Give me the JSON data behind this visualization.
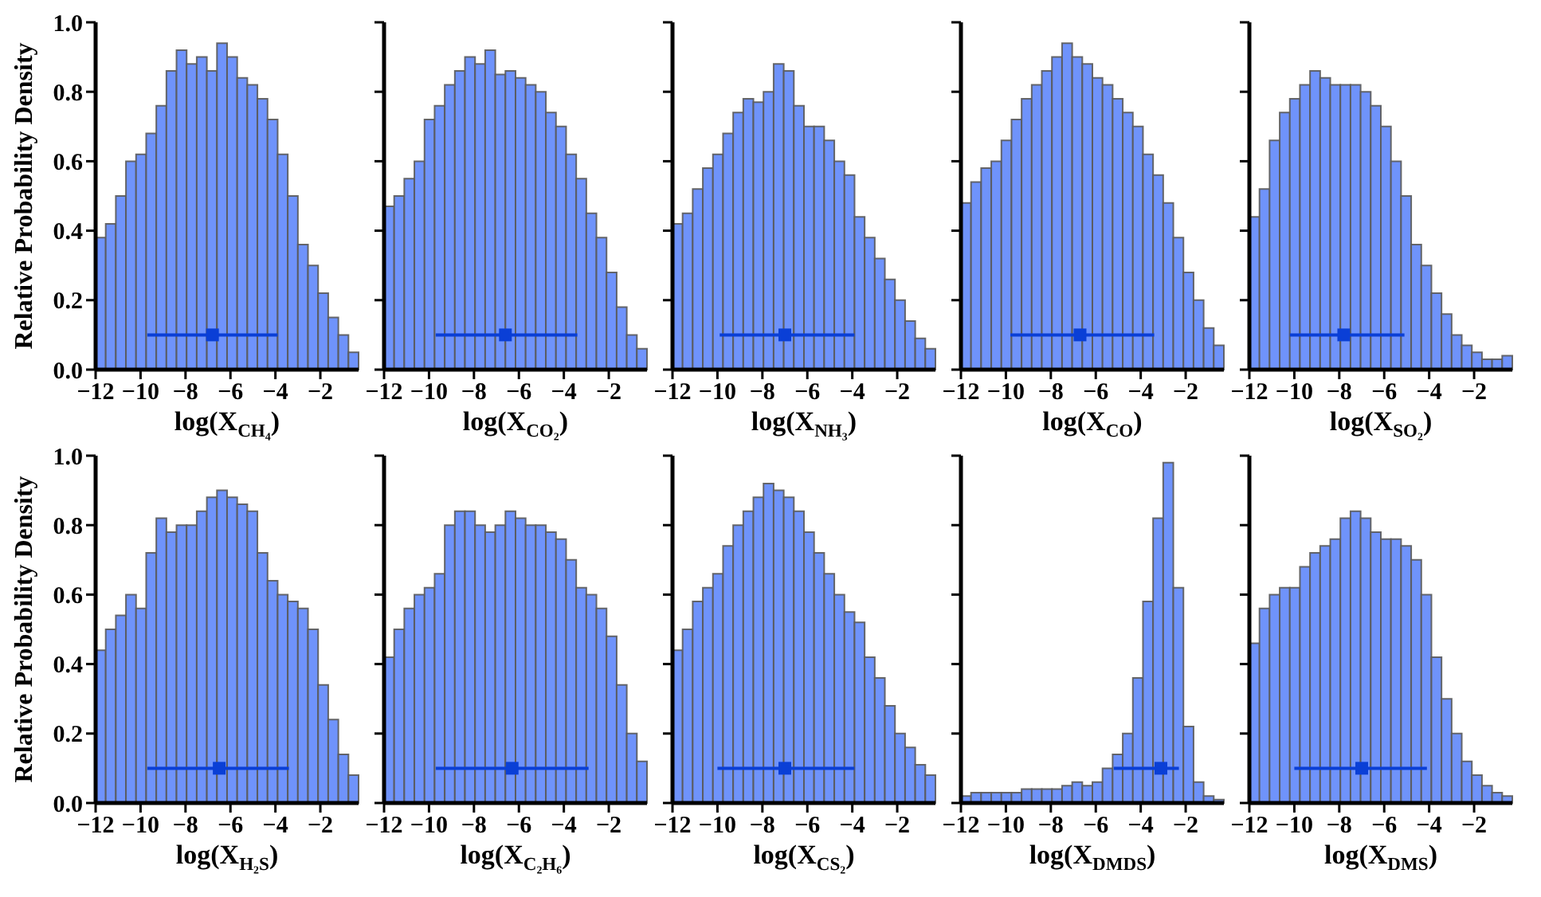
{
  "chart_data": [
    {
      "type": "histogram",
      "xlabel": "log(X$_{CH₄}$)",
      "ylabel": "Relative Probability Density",
      "bins": [
        -12,
        -11.55,
        -11.1,
        -10.65,
        -10.2,
        -9.75,
        -9.3,
        -8.85,
        -8.4,
        -7.95,
        -7.5,
        -7.05,
        -6.6,
        -6.15,
        -5.7,
        -5.25,
        -4.8,
        -4.35,
        -3.9,
        -3.45,
        -3,
        -2.55,
        -2.1,
        -1.65,
        -1.2,
        -0.75,
        -0.3
      ],
      "xlim": [
        -12,
        -0.3
      ],
      "xticks": [
        {
          "value": -12,
          "label": "−12"
        },
        {
          "value": -10,
          "label": "−10"
        },
        {
          "value": -8,
          "label": "−8"
        },
        {
          "value": -6,
          "label": "−6"
        },
        {
          "value": -4,
          "label": "−4"
        },
        {
          "value": -2,
          "label": "−2"
        }
      ],
      "ylim": [
        0,
        1
      ],
      "yticks": [
        {
          "value": 0,
          "label": "0.0"
        },
        {
          "value": 0.2,
          "label": "0.2"
        },
        {
          "value": 0.4,
          "label": "0.4"
        },
        {
          "value": 0.6,
          "label": "0.6"
        },
        {
          "value": 0.8,
          "label": "0.8"
        },
        {
          "value": 1,
          "label": "1.0"
        }
      ],
      "marker": "square",
      "series": [
        {
          "type": "histogram",
          "color": "#6f93fb",
          "values": [
            0.38,
            0.42,
            0.5,
            0.6,
            0.62,
            0.68,
            0.76,
            0.86,
            0.92,
            0.88,
            0.9,
            0.86,
            0.94,
            0.9,
            0.84,
            0.82,
            0.78,
            0.72,
            0.62,
            0.5,
            0.36,
            0.3,
            0.22,
            0.15,
            0.1,
            0.05
          ]
        },
        {
          "type": "scatter",
          "color": "#0a3fd6",
          "x": [
            -6.8
          ],
          "values": [
            0.1
          ],
          "xerrors": [
            [
              -9.7,
              -3.9
            ]
          ]
        }
      ]
    },
    {
      "type": "histogram",
      "xlabel": "log(X$_{CO₂}$)",
      "tick_labels": "x",
      "bins": [
        -12,
        -11.55,
        -11.1,
        -10.65,
        -10.2,
        -9.75,
        -9.3,
        -8.85,
        -8.4,
        -7.95,
        -7.5,
        -7.05,
        -6.6,
        -6.15,
        -5.7,
        -5.25,
        -4.8,
        -4.35,
        -3.9,
        -3.45,
        -3,
        -2.55,
        -2.1,
        -1.65,
        -1.2,
        -0.75,
        -0.3
      ],
      "xlim": [
        -12,
        -0.3
      ],
      "xticks": [
        {
          "value": -12,
          "label": "−12"
        },
        {
          "value": -10,
          "label": "−10"
        },
        {
          "value": -8,
          "label": "−8"
        },
        {
          "value": -6,
          "label": "−6"
        },
        {
          "value": -4,
          "label": "−4"
        },
        {
          "value": -2,
          "label": "−2"
        }
      ],
      "ylim": [
        0,
        1
      ],
      "yticks": [
        0,
        0.2,
        0.4,
        0.6,
        0.8,
        1
      ],
      "marker": "square",
      "series": [
        {
          "type": "histogram",
          "color": "#6f93fb",
          "values": [
            0.47,
            0.5,
            0.55,
            0.6,
            0.72,
            0.76,
            0.82,
            0.86,
            0.9,
            0.88,
            0.92,
            0.85,
            0.86,
            0.84,
            0.82,
            0.8,
            0.74,
            0.7,
            0.62,
            0.55,
            0.45,
            0.38,
            0.28,
            0.18,
            0.1,
            0.06
          ]
        },
        {
          "type": "scatter",
          "color": "#0a3fd6",
          "x": [
            -6.6
          ],
          "values": [
            0.1
          ],
          "xerrors": [
            [
              -9.7,
              -3.4
            ]
          ]
        }
      ]
    },
    {
      "type": "histogram",
      "xlabel": "log(X$_{NH₃}$)",
      "tick_labels": "x",
      "bins": [
        -12,
        -11.55,
        -11.1,
        -10.65,
        -10.2,
        -9.75,
        -9.3,
        -8.85,
        -8.4,
        -7.95,
        -7.5,
        -7.05,
        -6.6,
        -6.15,
        -5.7,
        -5.25,
        -4.8,
        -4.35,
        -3.9,
        -3.45,
        -3,
        -2.55,
        -2.1,
        -1.65,
        -1.2,
        -0.75,
        -0.3
      ],
      "xlim": [
        -12,
        -0.3
      ],
      "xticks": [
        {
          "value": -12,
          "label": "−12"
        },
        {
          "value": -10,
          "label": "−10"
        },
        {
          "value": -8,
          "label": "−8"
        },
        {
          "value": -6,
          "label": "−6"
        },
        {
          "value": -4,
          "label": "−4"
        },
        {
          "value": -2,
          "label": "−2"
        }
      ],
      "ylim": [
        0,
        1
      ],
      "yticks": [
        0,
        0.2,
        0.4,
        0.6,
        0.8,
        1
      ],
      "marker": "square",
      "series": [
        {
          "type": "histogram",
          "color": "#6f93fb",
          "values": [
            0.42,
            0.45,
            0.52,
            0.58,
            0.62,
            0.68,
            0.74,
            0.78,
            0.77,
            0.8,
            0.88,
            0.86,
            0.76,
            0.7,
            0.7,
            0.66,
            0.6,
            0.56,
            0.44,
            0.38,
            0.32,
            0.26,
            0.2,
            0.14,
            0.09,
            0.06
          ]
        },
        {
          "type": "scatter",
          "color": "#0a3fd6",
          "x": [
            -7.0
          ],
          "values": [
            0.1
          ],
          "xerrors": [
            [
              -9.9,
              -3.9
            ]
          ]
        }
      ]
    },
    {
      "type": "histogram",
      "xlabel": "log(X$_{CO}$)",
      "tick_labels": "x",
      "bins": [
        -12,
        -11.55,
        -11.1,
        -10.65,
        -10.2,
        -9.75,
        -9.3,
        -8.85,
        -8.4,
        -7.95,
        -7.5,
        -7.05,
        -6.6,
        -6.15,
        -5.7,
        -5.25,
        -4.8,
        -4.35,
        -3.9,
        -3.45,
        -3,
        -2.55,
        -2.1,
        -1.65,
        -1.2,
        -0.75,
        -0.3
      ],
      "xlim": [
        -12,
        -0.3
      ],
      "xticks": [
        {
          "value": -12,
          "label": "−12"
        },
        {
          "value": -10,
          "label": "−10"
        },
        {
          "value": -8,
          "label": "−8"
        },
        {
          "value": -6,
          "label": "−6"
        },
        {
          "value": -4,
          "label": "−4"
        },
        {
          "value": -2,
          "label": "−2"
        }
      ],
      "ylim": [
        0,
        1
      ],
      "yticks": [
        0,
        0.2,
        0.4,
        0.6,
        0.8,
        1
      ],
      "marker": "square",
      "series": [
        {
          "type": "histogram",
          "color": "#6f93fb",
          "values": [
            0.48,
            0.54,
            0.58,
            0.6,
            0.66,
            0.72,
            0.78,
            0.82,
            0.86,
            0.9,
            0.94,
            0.9,
            0.88,
            0.84,
            0.82,
            0.78,
            0.74,
            0.7,
            0.62,
            0.56,
            0.48,
            0.38,
            0.28,
            0.2,
            0.12,
            0.07
          ]
        },
        {
          "type": "scatter",
          "color": "#0a3fd6",
          "x": [
            -6.7
          ],
          "values": [
            0.1
          ],
          "xerrors": [
            [
              -9.8,
              -3.4
            ]
          ]
        }
      ]
    },
    {
      "type": "histogram",
      "xlabel": "log(X$_{SO₂}$)",
      "tick_labels": "x",
      "bins": [
        -12,
        -11.55,
        -11.1,
        -10.65,
        -10.2,
        -9.75,
        -9.3,
        -8.85,
        -8.4,
        -7.95,
        -7.5,
        -7.05,
        -6.6,
        -6.15,
        -5.7,
        -5.25,
        -4.8,
        -4.35,
        -3.9,
        -3.45,
        -3,
        -2.55,
        -2.1,
        -1.65,
        -1.2,
        -0.75,
        -0.3
      ],
      "xlim": [
        -12,
        -0.3
      ],
      "xticks": [
        {
          "value": -12,
          "label": "−12"
        },
        {
          "value": -10,
          "label": "−10"
        },
        {
          "value": -8,
          "label": "−8"
        },
        {
          "value": -6,
          "label": "−6"
        },
        {
          "value": -4,
          "label": "−4"
        },
        {
          "value": -2,
          "label": "−2"
        }
      ],
      "ylim": [
        0,
        1
      ],
      "yticks": [
        0,
        0.2,
        0.4,
        0.6,
        0.8,
        1
      ],
      "marker": "square",
      "series": [
        {
          "type": "histogram",
          "color": "#6f93fb",
          "values": [
            0.44,
            0.52,
            0.66,
            0.74,
            0.78,
            0.82,
            0.86,
            0.84,
            0.82,
            0.82,
            0.82,
            0.8,
            0.76,
            0.7,
            0.6,
            0.5,
            0.36,
            0.3,
            0.22,
            0.16,
            0.1,
            0.07,
            0.05,
            0.03,
            0.03,
            0.04
          ]
        },
        {
          "type": "scatter",
          "color": "#0a3fd6",
          "x": [
            -7.8
          ],
          "values": [
            0.1
          ],
          "xerrors": [
            [
              -10.2,
              -5.1
            ]
          ]
        }
      ]
    },
    {
      "type": "histogram",
      "xlabel": "log(X$_{H₂S}$)",
      "ylabel": "Relative Probability Density",
      "bins": [
        -12,
        -11.55,
        -11.1,
        -10.65,
        -10.2,
        -9.75,
        -9.3,
        -8.85,
        -8.4,
        -7.95,
        -7.5,
        -7.05,
        -6.6,
        -6.15,
        -5.7,
        -5.25,
        -4.8,
        -4.35,
        -3.9,
        -3.45,
        -3,
        -2.55,
        -2.1,
        -1.65,
        -1.2,
        -0.75,
        -0.3
      ],
      "xlim": [
        -12,
        -0.3
      ],
      "xticks": [
        {
          "value": -12,
          "label": "−12"
        },
        {
          "value": -10,
          "label": "−10"
        },
        {
          "value": -8,
          "label": "−8"
        },
        {
          "value": -6,
          "label": "−6"
        },
        {
          "value": -4,
          "label": "−4"
        },
        {
          "value": -2,
          "label": "−2"
        }
      ],
      "ylim": [
        0,
        1
      ],
      "yticks": [
        {
          "value": 0,
          "label": "0.0"
        },
        {
          "value": 0.2,
          "label": "0.2"
        },
        {
          "value": 0.4,
          "label": "0.4"
        },
        {
          "value": 0.6,
          "label": "0.6"
        },
        {
          "value": 0.8,
          "label": "0.8"
        },
        {
          "value": 1,
          "label": "1.0"
        }
      ],
      "marker": "square",
      "series": [
        {
          "type": "histogram",
          "color": "#6f93fb",
          "values": [
            0.44,
            0.5,
            0.54,
            0.6,
            0.56,
            0.72,
            0.82,
            0.78,
            0.8,
            0.8,
            0.84,
            0.88,
            0.9,
            0.88,
            0.86,
            0.84,
            0.72,
            0.64,
            0.6,
            0.58,
            0.56,
            0.5,
            0.34,
            0.24,
            0.14,
            0.08
          ]
        },
        {
          "type": "scatter",
          "color": "#0a3fd6",
          "x": [
            -6.5
          ],
          "values": [
            0.1
          ],
          "xerrors": [
            [
              -9.7,
              -3.4
            ]
          ]
        }
      ]
    },
    {
      "type": "histogram",
      "xlabel": "log(X$_{C₂H₆}$)",
      "tick_labels": "x",
      "bins": [
        -12,
        -11.55,
        -11.1,
        -10.65,
        -10.2,
        -9.75,
        -9.3,
        -8.85,
        -8.4,
        -7.95,
        -7.5,
        -7.05,
        -6.6,
        -6.15,
        -5.7,
        -5.25,
        -4.8,
        -4.35,
        -3.9,
        -3.45,
        -3,
        -2.55,
        -2.1,
        -1.65,
        -1.2,
        -0.75,
        -0.3
      ],
      "xlim": [
        -12,
        -0.3
      ],
      "xticks": [
        {
          "value": -12,
          "label": "−12"
        },
        {
          "value": -10,
          "label": "−10"
        },
        {
          "value": -8,
          "label": "−8"
        },
        {
          "value": -6,
          "label": "−6"
        },
        {
          "value": -4,
          "label": "−4"
        },
        {
          "value": -2,
          "label": "−2"
        }
      ],
      "ylim": [
        0,
        1
      ],
      "yticks": [
        0,
        0.2,
        0.4,
        0.6,
        0.8,
        1
      ],
      "marker": "square",
      "series": [
        {
          "type": "histogram",
          "color": "#6f93fb",
          "values": [
            0.42,
            0.5,
            0.56,
            0.6,
            0.62,
            0.66,
            0.8,
            0.84,
            0.84,
            0.8,
            0.78,
            0.8,
            0.84,
            0.82,
            0.8,
            0.8,
            0.78,
            0.76,
            0.7,
            0.62,
            0.6,
            0.56,
            0.48,
            0.34,
            0.2,
            0.12
          ]
        },
        {
          "type": "scatter",
          "color": "#0a3fd6",
          "x": [
            -6.3
          ],
          "values": [
            0.1
          ],
          "xerrors": [
            [
              -9.7,
              -2.9
            ]
          ]
        }
      ]
    },
    {
      "type": "histogram",
      "xlabel": "log(X$_{CS₂}$)",
      "tick_labels": "x",
      "bins": [
        -12,
        -11.55,
        -11.1,
        -10.65,
        -10.2,
        -9.75,
        -9.3,
        -8.85,
        -8.4,
        -7.95,
        -7.5,
        -7.05,
        -6.6,
        -6.15,
        -5.7,
        -5.25,
        -4.8,
        -4.35,
        -3.9,
        -3.45,
        -3,
        -2.55,
        -2.1,
        -1.65,
        -1.2,
        -0.75,
        -0.3
      ],
      "xlim": [
        -12,
        -0.3
      ],
      "xticks": [
        {
          "value": -12,
          "label": "−12"
        },
        {
          "value": -10,
          "label": "−10"
        },
        {
          "value": -8,
          "label": "−8"
        },
        {
          "value": -6,
          "label": "−6"
        },
        {
          "value": -4,
          "label": "−4"
        },
        {
          "value": -2,
          "label": "−2"
        }
      ],
      "ylim": [
        0,
        1
      ],
      "yticks": [
        0,
        0.2,
        0.4,
        0.6,
        0.8,
        1
      ],
      "marker": "square",
      "series": [
        {
          "type": "histogram",
          "color": "#6f93fb",
          "values": [
            0.44,
            0.5,
            0.58,
            0.62,
            0.66,
            0.74,
            0.8,
            0.84,
            0.88,
            0.92,
            0.9,
            0.88,
            0.84,
            0.78,
            0.72,
            0.66,
            0.6,
            0.55,
            0.52,
            0.42,
            0.36,
            0.28,
            0.2,
            0.16,
            0.11,
            0.08
          ]
        },
        {
          "type": "scatter",
          "color": "#0a3fd6",
          "x": [
            -7.0
          ],
          "values": [
            0.1
          ],
          "xerrors": [
            [
              -10.0,
              -3.9
            ]
          ]
        }
      ]
    },
    {
      "type": "histogram",
      "xlabel": "log(X$_{DMDS}$)",
      "tick_labels": "x",
      "bins": [
        -12,
        -11.55,
        -11.1,
        -10.65,
        -10.2,
        -9.75,
        -9.3,
        -8.85,
        -8.4,
        -7.95,
        -7.5,
        -7.05,
        -6.6,
        -6.15,
        -5.7,
        -5.25,
        -4.8,
        -4.35,
        -3.9,
        -3.45,
        -3,
        -2.55,
        -2.1,
        -1.65,
        -1.2,
        -0.75,
        -0.3
      ],
      "xlim": [
        -12,
        -0.3
      ],
      "xticks": [
        {
          "value": -12,
          "label": "−12"
        },
        {
          "value": -10,
          "label": "−10"
        },
        {
          "value": -8,
          "label": "−8"
        },
        {
          "value": -6,
          "label": "−6"
        },
        {
          "value": -4,
          "label": "−4"
        },
        {
          "value": -2,
          "label": "−2"
        }
      ],
      "ylim": [
        0,
        1
      ],
      "yticks": [
        0,
        0.2,
        0.4,
        0.6,
        0.8,
        1
      ],
      "marker": "square",
      "series": [
        {
          "type": "histogram",
          "color": "#6f93fb",
          "values": [
            0.02,
            0.03,
            0.03,
            0.03,
            0.03,
            0.03,
            0.04,
            0.04,
            0.04,
            0.04,
            0.05,
            0.06,
            0.05,
            0.06,
            0.1,
            0.14,
            0.2,
            0.36,
            0.58,
            0.82,
            0.98,
            0.62,
            0.22,
            0.06,
            0.02,
            0.01
          ]
        },
        {
          "type": "scatter",
          "color": "#0a3fd6",
          "x": [
            -3.1
          ],
          "values": [
            0.1
          ],
          "xerrors": [
            [
              -5.2,
              -2.3
            ]
          ]
        }
      ]
    },
    {
      "type": "histogram",
      "xlabel": "log(X$_{DMS}$)",
      "tick_labels": "x",
      "bins": [
        -12,
        -11.55,
        -11.1,
        -10.65,
        -10.2,
        -9.75,
        -9.3,
        -8.85,
        -8.4,
        -7.95,
        -7.5,
        -7.05,
        -6.6,
        -6.15,
        -5.7,
        -5.25,
        -4.8,
        -4.35,
        -3.9,
        -3.45,
        -3,
        -2.55,
        -2.1,
        -1.65,
        -1.2,
        -0.75,
        -0.3
      ],
      "xlim": [
        -12,
        -0.3
      ],
      "xticks": [
        {
          "value": -12,
          "label": "−12"
        },
        {
          "value": -10,
          "label": "−10"
        },
        {
          "value": -8,
          "label": "−8"
        },
        {
          "value": -6,
          "label": "−6"
        },
        {
          "value": -4,
          "label": "−4"
        },
        {
          "value": -2,
          "label": "−2"
        }
      ],
      "ylim": [
        0,
        1
      ],
      "yticks": [
        0,
        0.2,
        0.4,
        0.6,
        0.8,
        1
      ],
      "marker": "square",
      "series": [
        {
          "type": "histogram",
          "color": "#6f93fb",
          "values": [
            0.46,
            0.56,
            0.6,
            0.62,
            0.62,
            0.68,
            0.72,
            0.74,
            0.76,
            0.82,
            0.84,
            0.82,
            0.78,
            0.76,
            0.76,
            0.74,
            0.7,
            0.6,
            0.42,
            0.3,
            0.2,
            0.12,
            0.08,
            0.05,
            0.03,
            0.02
          ]
        },
        {
          "type": "scatter",
          "color": "#0a3fd6",
          "x": [
            -7.0
          ],
          "values": [
            0.1
          ],
          "xerrors": [
            [
              -10.0,
              -4.1
            ]
          ]
        }
      ]
    }
  ]
}
